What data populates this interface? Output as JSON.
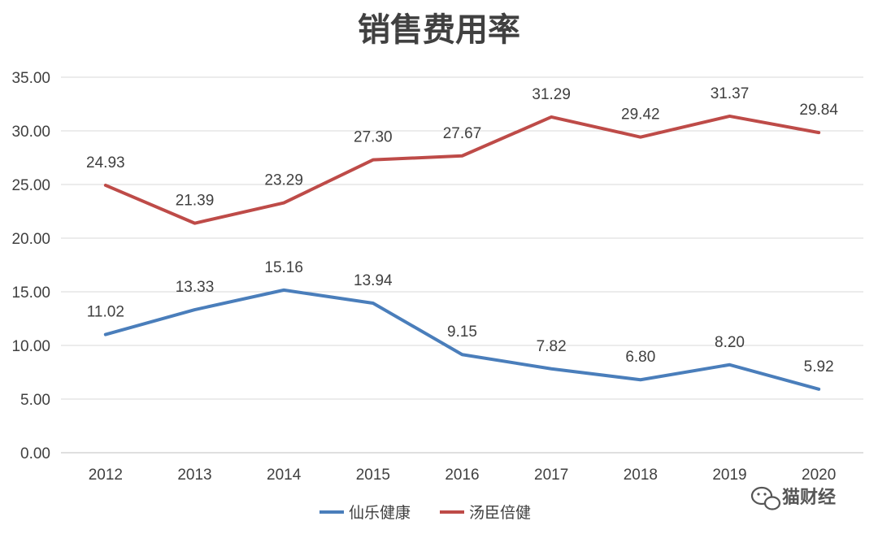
{
  "chart_data": {
    "type": "line",
    "title": "销售费用率",
    "xlabel": "",
    "ylabel": "",
    "categories": [
      "2012",
      "2013",
      "2014",
      "2015",
      "2016",
      "2017",
      "2018",
      "2019",
      "2020"
    ],
    "ylim": [
      0,
      35
    ],
    "yticks": [
      "0.00",
      "5.00",
      "10.00",
      "15.00",
      "20.00",
      "25.00",
      "30.00",
      "35.00"
    ],
    "grid": true,
    "legend_position": "bottom",
    "series": [
      {
        "name": "仙乐健康",
        "color": "#4a7ebb",
        "values": [
          11.02,
          13.33,
          15.16,
          13.94,
          9.15,
          7.82,
          6.8,
          8.2,
          5.92
        ],
        "labels": [
          "11.02",
          "13.33",
          "15.16",
          "13.94",
          "9.15",
          "7.82",
          "6.80",
          "8.20",
          "5.92"
        ]
      },
      {
        "name": "汤臣倍健",
        "color": "#be4b48",
        "values": [
          24.93,
          21.39,
          23.29,
          27.3,
          27.67,
          31.29,
          29.42,
          31.37,
          29.84
        ],
        "labels": [
          "24.93",
          "21.39",
          "23.29",
          "27.30",
          "27.67",
          "31.29",
          "29.42",
          "31.37",
          "29.84"
        ]
      }
    ]
  },
  "watermark": {
    "text": "猫财经",
    "icon": "wechat-icon"
  }
}
